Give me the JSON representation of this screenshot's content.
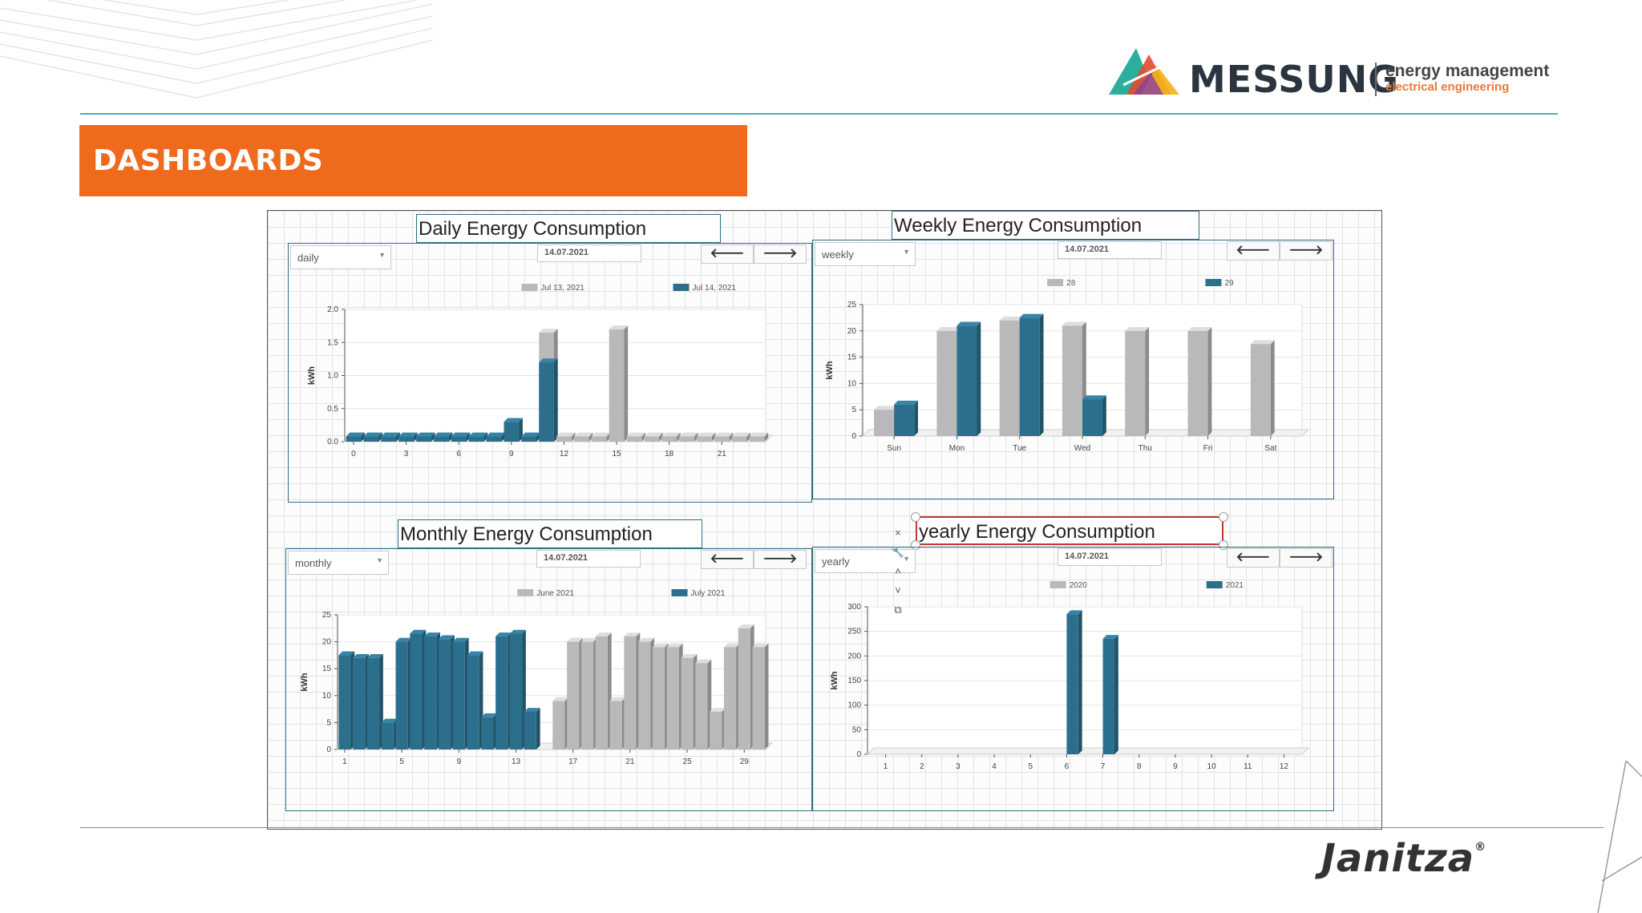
{
  "header": {
    "brand_name": "MESSUNG",
    "brand_tagline": "energy management",
    "brand_subline": "electrical engineering",
    "banner_title": "DASHBOARDS",
    "footer_brand": "Janitza",
    "footer_reg": "®"
  },
  "colors": {
    "banner": "#f06a1e",
    "series_prev": "#b9b9bb",
    "series_curr": "#2c6f8c",
    "accent_line": "#5aa9b3"
  },
  "panels": {
    "daily": {
      "title": "Daily Energy Consumption",
      "period": "daily",
      "date": "14.07.2021",
      "prev_btn": "🡐",
      "next_btn": "🡒"
    },
    "weekly": {
      "title": "Weekly Energy Consumption",
      "period": "weekly",
      "date": "14.07.2021",
      "prev_btn": "🡐",
      "next_btn": "🡒"
    },
    "monthly": {
      "title": "Monthly Energy Consumption",
      "period": "monthly",
      "date": "14.07.2021",
      "prev_btn": "🡐",
      "next_btn": "🡒"
    },
    "yearly": {
      "title": "yearly Energy Consumption",
      "period": "yearly",
      "date": "14.07.2021",
      "prev_btn": "🡐",
      "next_btn": "🡒"
    }
  },
  "side_tools": [
    "×",
    "🔧",
    "˄",
    "˅",
    "⧉"
  ],
  "chart_data": [
    {
      "id": "daily",
      "type": "bar",
      "ylabel": "kWh",
      "ylim": [
        0,
        2.0
      ],
      "yticks": [
        "0.0",
        "0.5",
        "1.0",
        "1.5",
        "2.0"
      ],
      "xtick_labels": [
        "0",
        "3",
        "6",
        "9",
        "12",
        "15",
        "18",
        "21"
      ],
      "categories": [
        "0",
        "1",
        "2",
        "3",
        "4",
        "5",
        "6",
        "7",
        "8",
        "9",
        "10",
        "11",
        "12",
        "13",
        "14",
        "15",
        "16",
        "17",
        "18",
        "19",
        "20",
        "21",
        "22",
        "23"
      ],
      "series": [
        {
          "name": "Jul 13, 2021",
          "values": [
            0.08,
            0.08,
            0.08,
            0.08,
            0.08,
            0.08,
            0.08,
            0.08,
            0.08,
            0.08,
            0.08,
            1.65,
            0.08,
            0.08,
            0.08,
            1.7,
            0.08,
            0.08,
            0.08,
            0.08,
            0.08,
            0.08,
            0.08,
            0.08
          ]
        },
        {
          "name": "Jul 14, 2021",
          "values": [
            0.08,
            0.08,
            0.08,
            0.08,
            0.08,
            0.08,
            0.08,
            0.08,
            0.08,
            0.3,
            0.08,
            1.2,
            0.0,
            0.0,
            0.0,
            0.0,
            0.0,
            0.0,
            0.0,
            0.0,
            0.0,
            0.0,
            0.0,
            0.0
          ]
        }
      ],
      "legend": "top-right",
      "grid": true
    },
    {
      "id": "weekly",
      "type": "bar",
      "ylabel": "kWh",
      "ylim": [
        0,
        25
      ],
      "yticks": [
        "0",
        "5",
        "10",
        "15",
        "20",
        "25"
      ],
      "categories": [
        "Sun",
        "Mon",
        "Tue",
        "Wed",
        "Thu",
        "Fri",
        "Sat"
      ],
      "series": [
        {
          "name": "28",
          "values": [
            5,
            20,
            22,
            21,
            20,
            20,
            17.5
          ]
        },
        {
          "name": "29",
          "values": [
            6,
            21,
            22.5,
            7,
            0,
            0,
            0
          ]
        }
      ],
      "legend": "top-right",
      "grid": true
    },
    {
      "id": "monthly",
      "type": "bar",
      "ylabel": "kWh",
      "ylim": [
        0,
        25
      ],
      "yticks": [
        "0",
        "5",
        "10",
        "15",
        "20",
        "25"
      ],
      "xtick_labels": [
        "1",
        "5",
        "9",
        "13",
        "17",
        "21",
        "25",
        "29"
      ],
      "categories": [
        "1",
        "2",
        "3",
        "4",
        "5",
        "6",
        "7",
        "8",
        "9",
        "10",
        "11",
        "12",
        "13",
        "14",
        "15",
        "16",
        "17",
        "18",
        "19",
        "20",
        "21",
        "22",
        "23",
        "24",
        "25",
        "26",
        "27",
        "28",
        "29",
        "30"
      ],
      "series": [
        {
          "name": "June 2021",
          "values": [
            0,
            0,
            0,
            0,
            0,
            0,
            0,
            0,
            0,
            0,
            0,
            0,
            0,
            0,
            0,
            9,
            20,
            20,
            21,
            9,
            21,
            20,
            19,
            19,
            17,
            16,
            7,
            19,
            22.5,
            19
          ]
        },
        {
          "name": "July 2021",
          "values": [
            17.5,
            17,
            17,
            5,
            20,
            21.5,
            21,
            20.5,
            20,
            17.5,
            6,
            21,
            21.5,
            7,
            0,
            0,
            0,
            0,
            0,
            0,
            0,
            0,
            0,
            0,
            0,
            0,
            0,
            0,
            0,
            0
          ]
        }
      ],
      "legend": "top-right",
      "grid": true
    },
    {
      "id": "yearly",
      "type": "bar",
      "ylabel": "kWh",
      "ylim": [
        0,
        300
      ],
      "yticks": [
        "0",
        "50",
        "100",
        "150",
        "200",
        "250",
        "300"
      ],
      "categories": [
        "1",
        "2",
        "3",
        "4",
        "5",
        "6",
        "7",
        "8",
        "9",
        "10",
        "11",
        "12"
      ],
      "series": [
        {
          "name": "2020",
          "values": [
            0,
            0,
            0,
            0,
            0,
            0,
            0,
            0,
            0,
            0,
            0,
            0
          ]
        },
        {
          "name": "2021",
          "values": [
            0,
            0,
            0,
            0,
            0,
            285,
            235,
            0,
            0,
            0,
            0,
            0
          ]
        }
      ],
      "legend": "top-right",
      "grid": true
    }
  ]
}
